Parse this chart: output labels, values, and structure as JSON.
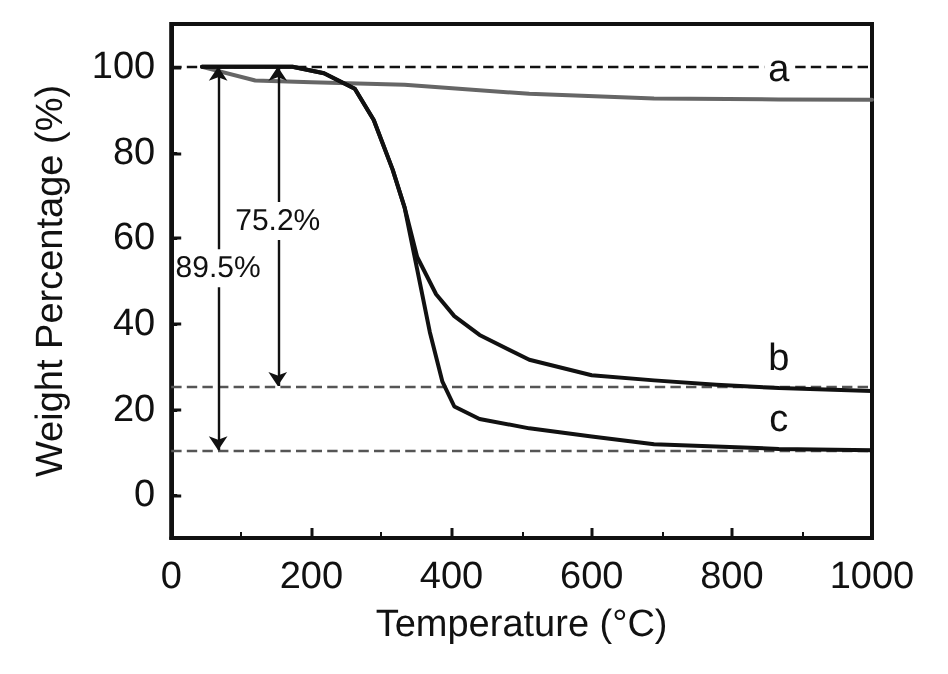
{
  "chart_data": {
    "type": "line",
    "xlabel": "Temperature (°C)",
    "ylabel": "Weight Percentage (%)",
    "xlim": [
      0,
      1000
    ],
    "xticks": [
      0,
      200,
      400,
      600,
      800,
      1000
    ],
    "ylim": [
      -10,
      110
    ],
    "yticks": [
      0,
      20,
      40,
      60,
      80,
      100
    ],
    "grid": false,
    "legend": false,
    "marker": "none",
    "line_style": "solid",
    "series": [
      {
        "name": "a",
        "color": "#666666",
        "x": [
          44,
          120,
          200,
          333,
          511,
          689,
          867,
          1000
        ],
        "values": [
          100,
          96.8,
          96.4,
          95.8,
          93.7,
          92.6,
          92.4,
          92.3
        ]
      },
      {
        "name": "b",
        "color": "#111111",
        "x": [
          44,
          173,
          218,
          262,
          289,
          316,
          333,
          351,
          378,
          404,
          440,
          511,
          600,
          689,
          778,
          867,
          1000
        ],
        "values": [
          100,
          100,
          98.5,
          94.9,
          87.6,
          76,
          67.2,
          55.6,
          46.9,
          41.8,
          37.4,
          31.6,
          28,
          26.8,
          25.8,
          25,
          24.3
        ]
      },
      {
        "name": "c",
        "color": "#111111",
        "x": [
          44,
          173,
          218,
          262,
          289,
          316,
          333,
          351,
          369,
          387,
          404,
          440,
          511,
          600,
          689,
          867,
          1000
        ],
        "values": [
          100,
          100,
          98.5,
          94.9,
          87.6,
          76,
          67.2,
          52.7,
          38.1,
          26.5,
          20.7,
          17.8,
          15.6,
          13.7,
          11.9,
          10.8,
          10.5
        ]
      }
    ],
    "ref_lines": [
      {
        "axis": "y",
        "value": 100,
        "color": "#111111",
        "line_style": "dashed"
      },
      {
        "axis": "y",
        "value": 25.5,
        "color": "#555555",
        "line_style": "dashed"
      },
      {
        "axis": "y",
        "value": 10.5,
        "color": "#555555",
        "line_style": "dashed"
      }
    ],
    "annotations": [
      {
        "text": "75.2%",
        "x": 152,
        "y": 64
      },
      {
        "text": "89.5%",
        "x": 67,
        "y": 53
      }
    ]
  }
}
